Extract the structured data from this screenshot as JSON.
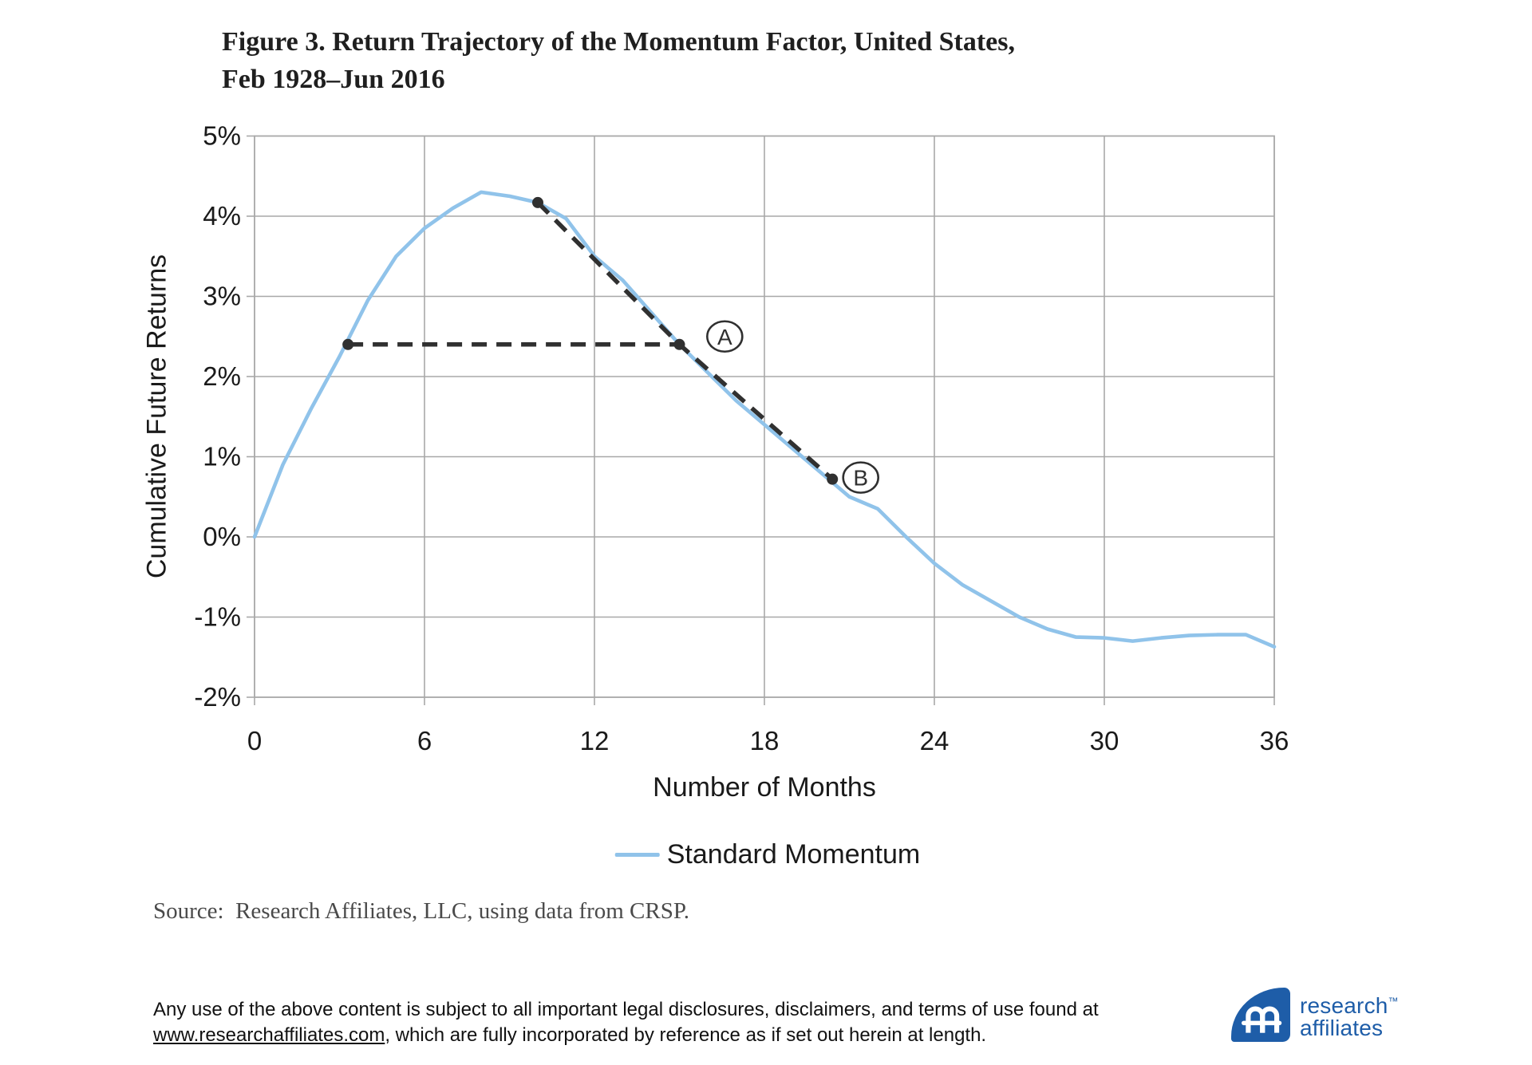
{
  "title": {
    "line1": "Figure 3. Return Trajectory of the Momentum Factor, United States,",
    "line2": "Feb 1928–Jun 2016"
  },
  "chart_data": {
    "type": "line",
    "title": "Figure 3. Return Trajectory of the Momentum Factor, United States, Feb 1928–Jun 2016",
    "xlabel": "Number of Months",
    "ylabel": "Cumulative Future Returns",
    "xlim": [
      0,
      36
    ],
    "ylim": [
      -2,
      5
    ],
    "grid": true,
    "x_ticks": [
      0,
      6,
      12,
      18,
      24,
      30,
      36
    ],
    "y_tick_values": [
      5,
      4,
      3,
      2,
      1,
      0,
      -1,
      -2
    ],
    "y_tick_labels": [
      "5%",
      "4%",
      "3%",
      "2%",
      "1%",
      "0%",
      "-1%",
      "-2%"
    ],
    "legend": {
      "position": "bottom",
      "entries": [
        {
          "label": "Standard Momentum",
          "color": "#90C3EA"
        }
      ]
    },
    "series": [
      {
        "name": "Standard Momentum",
        "x": [
          0,
          1,
          2,
          3,
          4,
          5,
          6,
          7,
          8,
          9,
          10,
          11,
          12,
          13,
          14,
          15,
          16,
          17,
          18,
          19,
          20,
          21,
          22,
          23,
          24,
          25,
          26,
          27,
          28,
          29,
          30,
          31,
          32,
          33,
          34,
          35,
          36
        ],
        "values": [
          0.0,
          0.9,
          1.6,
          2.25,
          2.95,
          3.5,
          3.85,
          4.1,
          4.3,
          4.25,
          4.17,
          3.97,
          3.5,
          3.2,
          2.8,
          2.4,
          2.05,
          1.7,
          1.4,
          1.1,
          0.8,
          0.5,
          0.35,
          0.0,
          -0.33,
          -0.6,
          -0.8,
          -1.0,
          -1.15,
          -1.25,
          -1.26,
          -1.3,
          -1.26,
          -1.23,
          -1.22,
          -1.22,
          -1.37
        ]
      }
    ],
    "annotations": {
      "dashed_lines": [
        {
          "points": [
            [
              3.3,
              2.4
            ],
            [
              15,
              2.4
            ]
          ]
        },
        {
          "points": [
            [
              10,
              4.17
            ],
            [
              15,
              2.4
            ],
            [
              20.4,
              0.72
            ]
          ]
        }
      ],
      "marker_points": [
        {
          "x": 3.3,
          "y": 2.4
        },
        {
          "x": 10,
          "y": 4.17
        },
        {
          "x": 15,
          "y": 2.4
        },
        {
          "x": 20.4,
          "y": 0.72
        }
      ],
      "circled_labels": [
        {
          "text": "A",
          "x": 16.6,
          "y": 2.5
        },
        {
          "text": "B",
          "x": 21.4,
          "y": 0.74
        }
      ]
    },
    "colors": {
      "line": "#90C3EA",
      "grid": "#A8A8A8",
      "annotation": "#303030"
    }
  },
  "source_text": "Source:  Research Affiliates, LLC, using data from CRSP.",
  "footer": {
    "line1": "Any use of the above content is subject to all important legal disclosures, disclaimers, and terms of use found at",
    "link": "www.researchaffiliates.com",
    "line2_rest": ", which are fully incorporated by reference as if set out herein at length."
  },
  "logo": {
    "word1": "research",
    "word2": "affiliates",
    "tm": "™",
    "color": "#1E5DA8"
  }
}
